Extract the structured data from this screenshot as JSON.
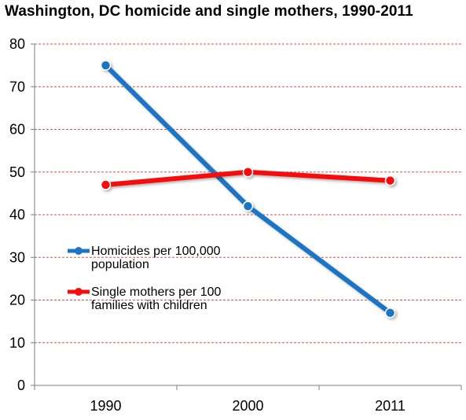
{
  "chart_data": {
    "type": "line",
    "title": "Washington, DC homicide and single mothers, 1990-2011",
    "xlabel": "",
    "ylabel": "",
    "categories": [
      "1990",
      "2000",
      "2011"
    ],
    "ylim": [
      0,
      80
    ],
    "yticks": [
      "0",
      "10",
      "20",
      "30",
      "40",
      "50",
      "60",
      "70",
      "80"
    ],
    "grid": true,
    "legend_position": "left-middle",
    "series": [
      {
        "name": "Homicides per 100,000 population",
        "legend_lines": [
          "Homicides per 100,000",
          "population"
        ],
        "color": "#1f74c4",
        "values": [
          75,
          42,
          17
        ]
      },
      {
        "name": "Single mothers per 100 families with children",
        "legend_lines": [
          "Single mothers per 100",
          "families with children"
        ],
        "color": "#f50d0d",
        "values": [
          47,
          50,
          48
        ]
      }
    ],
    "grid_color": "#d9534f",
    "axis_color": "#7f7f7f"
  }
}
